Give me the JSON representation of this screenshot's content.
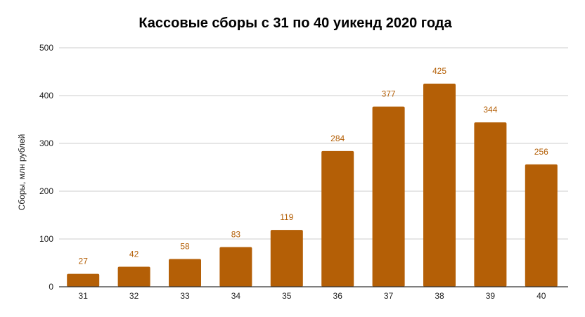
{
  "chart_data": {
    "type": "bar",
    "title": "Кассовые сборы с 31 по 40 уикенд 2020 года",
    "xlabel": "",
    "ylabel": "Сборы, млн рублей",
    "categories": [
      "31",
      "32",
      "33",
      "34",
      "35",
      "36",
      "37",
      "38",
      "39",
      "40"
    ],
    "values": [
      27,
      42,
      58,
      83,
      119,
      284,
      377,
      425,
      344,
      256
    ],
    "data_labels": [
      "27",
      "42",
      "58",
      "83",
      "119",
      "284",
      "377",
      "425",
      "344",
      "256"
    ],
    "ylim": [
      0,
      500
    ],
    "yticks": [
      0,
      100,
      200,
      300,
      400,
      500
    ],
    "grid": true,
    "legend": null,
    "colors": {
      "bar": "#b45f06",
      "label": "#b45f06",
      "grid": "#cccccc",
      "axis": "#333333",
      "text": "#222222"
    }
  }
}
